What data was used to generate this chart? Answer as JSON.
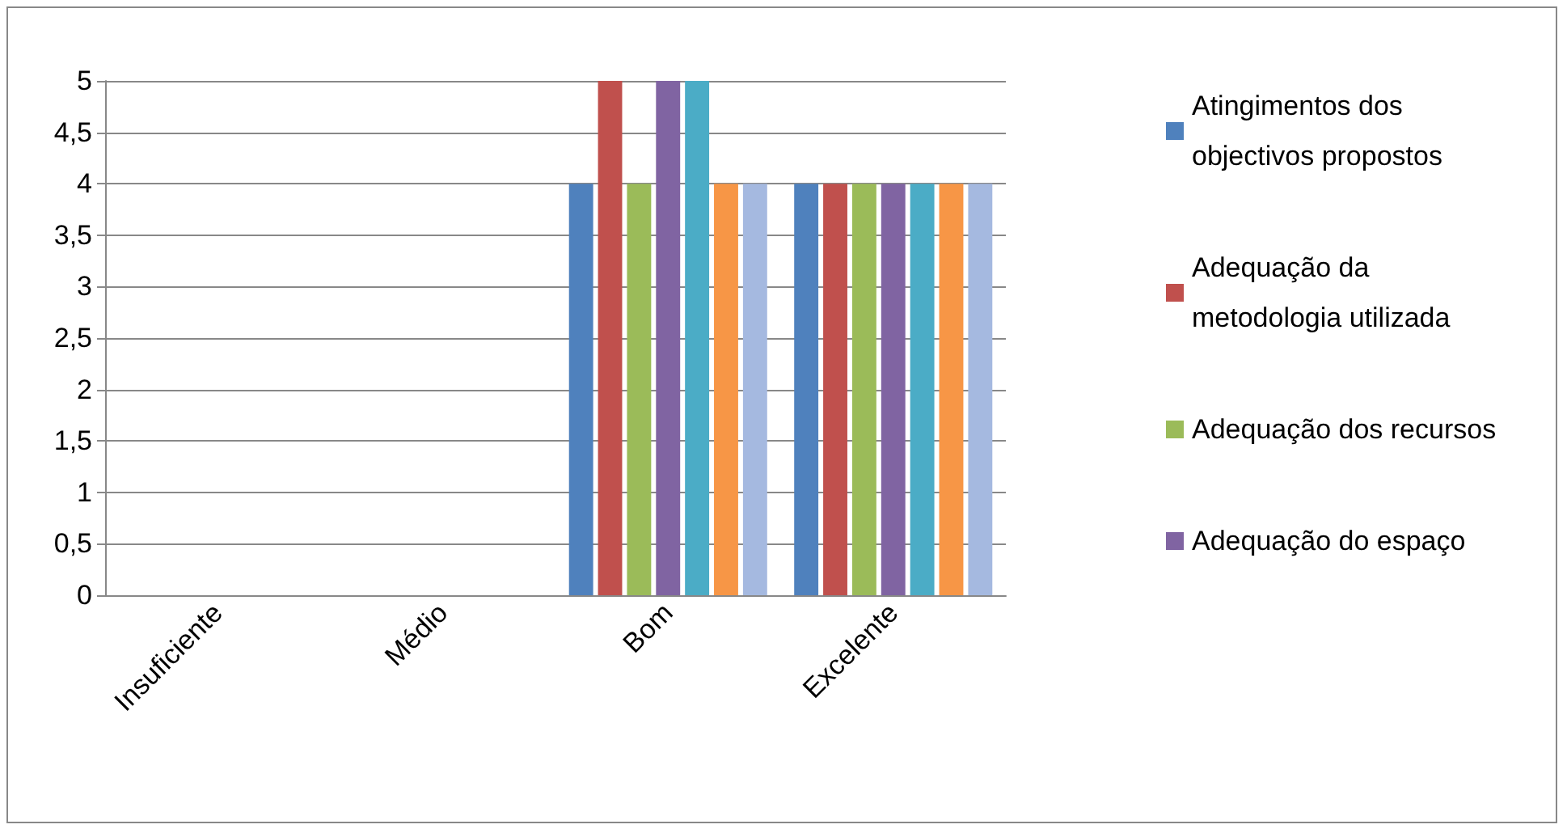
{
  "chart_data": {
    "type": "bar",
    "categories": [
      "Insuficiente",
      "Médio",
      "Bom",
      "Excelente"
    ],
    "series": [
      {
        "name": "Atingimentos dos objectivos propostos",
        "color": "#4f81bd",
        "values": [
          0,
          0,
          4,
          4
        ]
      },
      {
        "name": "Adequação da metodologia utilizada",
        "color": "#c0504d",
        "values": [
          0,
          0,
          5,
          4
        ]
      },
      {
        "name": "Adequação dos recursos",
        "color": "#9bbb59",
        "values": [
          0,
          0,
          4,
          4
        ]
      },
      {
        "name": "Adequação do espaço",
        "color": "#8064a2",
        "values": [
          0,
          0,
          5,
          4
        ]
      },
      {
        "color": "#4bacc6",
        "values": [
          0,
          0,
          5,
          4
        ]
      },
      {
        "color": "#f79646",
        "values": [
          0,
          0,
          4,
          4
        ]
      },
      {
        "color": "#a5b9e0",
        "values": [
          0,
          0,
          4,
          4
        ]
      }
    ],
    "ylim": [
      0,
      5
    ],
    "yticks": [
      0,
      {
        "value": 0.5,
        "label": "0,5"
      },
      1,
      {
        "value": 1.5,
        "label": "1,5"
      },
      2,
      {
        "value": 2.5,
        "label": "2,5"
      },
      3,
      {
        "value": 3.5,
        "label": "3,5"
      },
      4,
      {
        "value": 4.5,
        "label": "4,5"
      },
      5
    ],
    "grid": "y",
    "legend": "right"
  }
}
